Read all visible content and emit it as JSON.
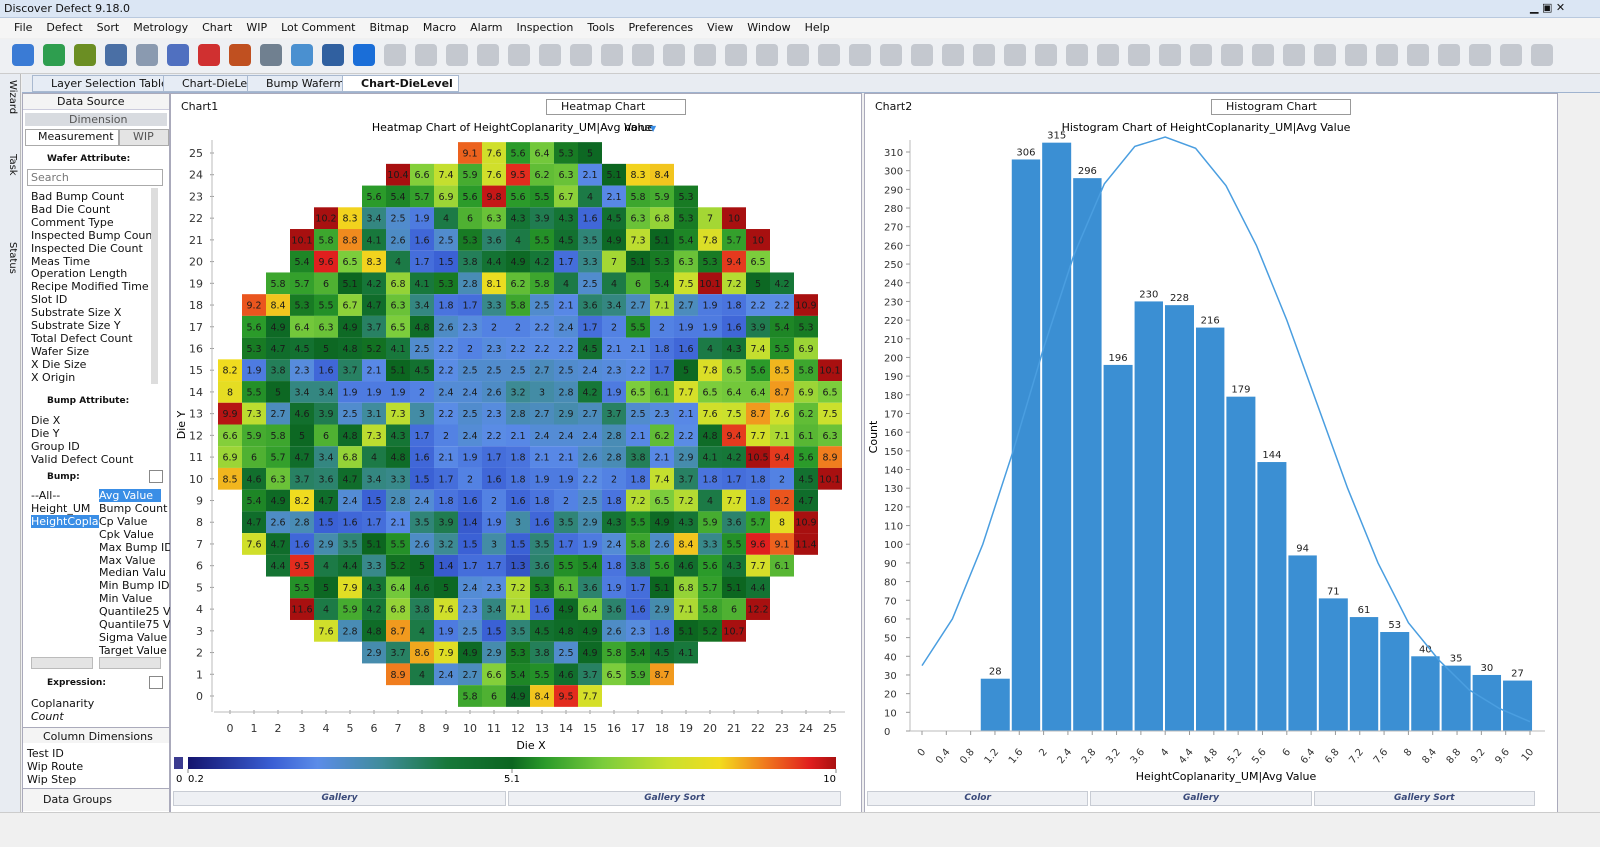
{
  "window": {
    "title": "Discover Defect 9.18.0"
  },
  "menu": [
    "File",
    "Defect",
    "Sort",
    "Metrology",
    "Chart",
    "WIP",
    "Lot Comment",
    "Bitmap",
    "Macro",
    "Alarm",
    "Inspection",
    "Tools",
    "Preferences",
    "View",
    "Window",
    "Help"
  ],
  "tabs": [
    "Layer Selection Table",
    "Chart-DieLevel",
    "Bump Wafermar",
    "Chart-DieLevel"
  ],
  "side_tabs": [
    "Wizard",
    "Task",
    "Status"
  ],
  "left_panel": {
    "title": "Data Source",
    "section": "Dimension",
    "subtabs": [
      "Measurement",
      "WIP"
    ],
    "wafer_header": "Wafer Attribute:",
    "search": "Search",
    "wafer_attributes": [
      "Bad Bump Count",
      "Bad Die Count",
      "Comment Type",
      "Inspected Bump Count",
      "Inspected Die Count",
      "Meas Time",
      "Operation Length",
      "Recipe Modified Time",
      "Slot ID",
      "Substrate Size X",
      "Substrate Size Y",
      "Total Defect Count",
      "Wafer Size",
      "X Die Size",
      "X Origin"
    ],
    "bump_attr_header": "Bump Attribute:",
    "bump_attributes": [
      "Die X",
      "Die Y",
      "Group ID",
      "Valid Defect Count"
    ],
    "bump_header": "Bump:",
    "bump_items": [
      "--All--",
      "Height_UM",
      "HeightCoplar"
    ],
    "bump_stats": [
      "Avg Value",
      "Bump Count",
      "Cp Value",
      "Cpk Value",
      "Max Bump ID",
      "Max Value",
      "Median Valu",
      "Min Bump ID",
      "Min Value",
      "Quantile25 V",
      "Quantile75 V",
      "Sigma Value",
      "Target Value"
    ],
    "expression_header": "Expression:",
    "expression_items": [
      "Coplanarity",
      "Count"
    ],
    "column_header": "Column Dimensions",
    "column_items": [
      "Test ID",
      "Wip Route",
      "Wip Step"
    ],
    "groups_header": "Data Groups"
  },
  "panels": [
    {
      "name": "Chart1",
      "selector": "Heatmap Chart",
      "footer": [
        "Gallery",
        "Gallery Sort"
      ]
    },
    {
      "name": "Chart2",
      "selector": "Histogram Chart",
      "footer": [
        "Color",
        "Gallery",
        "Gallery Sort"
      ]
    }
  ],
  "chart_data": [
    {
      "type": "heatmap",
      "title": "Heatmap Chart of  HeightCoplanarity_UM|Avg Value",
      "title_suffix": "none",
      "x_label": "Die X",
      "y_label": "Die Y",
      "xlim": [
        -0.5,
        25.5
      ],
      "ylim": [
        -0.5,
        25.5
      ],
      "xticks": [
        0,
        1,
        2,
        3,
        4,
        5,
        6,
        7,
        8,
        9,
        10,
        11,
        12,
        13,
        14,
        15,
        16,
        17,
        18,
        19,
        20,
        21,
        22,
        23,
        24,
        25
      ],
      "yticks": [
        0,
        1,
        2,
        3,
        4,
        5,
        6,
        7,
        8,
        9,
        10,
        11,
        12,
        13,
        14,
        15,
        16,
        17,
        18,
        19,
        20,
        21,
        22,
        23,
        24,
        25
      ],
      "colorbar": {
        "under_label": 0,
        "ticks": [
          0.2,
          5.1,
          10
        ]
      },
      "rows": [
        {
          "y": 25,
          "x0": 10,
          "values": [
            9.1,
            7.6,
            5.6,
            6.4,
            5.3,
            5
          ]
        },
        {
          "y": 24,
          "x0": 7,
          "values": [
            10.4,
            6.6,
            7.4,
            5.9,
            7.6,
            9.5,
            6.2,
            6.3,
            2.1,
            5.1,
            8.3,
            8.4
          ]
        },
        {
          "y": 23,
          "x0": 6,
          "values": [
            5.6,
            5.4,
            5.7,
            6.9,
            5.6,
            9.8,
            5.6,
            5.5,
            6.7,
            4,
            2.1,
            5.8,
            5.9,
            5.3
          ]
        },
        {
          "y": 22,
          "x0": 4,
          "values": [
            10.2,
            8.3,
            3.4,
            2.5,
            1.9,
            4,
            6,
            6.3,
            4.3,
            3.9,
            4.3,
            1.6,
            4.5,
            6.3,
            6.8,
            5.3,
            7,
            10
          ]
        },
        {
          "y": 21,
          "x0": 3,
          "values": [
            10.1,
            5.8,
            8.8,
            4.1,
            2.6,
            1.6,
            2.5,
            5.3,
            3.6,
            4,
            5.5,
            4.5,
            3.5,
            4.9,
            7.3,
            5.1,
            5.4,
            7.8,
            5.7,
            10
          ]
        },
        {
          "y": 20,
          "x0": 3,
          "values": [
            5.4,
            9.6,
            6.5,
            8.3,
            4,
            1.7,
            1.5,
            3.8,
            4.4,
            4.9,
            4.2,
            1.7,
            3.3,
            7,
            5.1,
            5.3,
            6.3,
            5.3,
            9.4,
            6.5
          ]
        },
        {
          "y": 19,
          "x0": 2,
          "values": [
            5.8,
            5.7,
            6,
            5.1,
            4.2,
            6.8,
            4.1,
            5.3,
            2.8,
            8.1,
            6.2,
            5.8,
            4,
            2.5,
            4,
            6,
            5.4,
            7.5,
            10.1,
            7.2,
            5,
            4.2
          ]
        },
        {
          "y": 18,
          "x0": 1,
          "values": [
            9.2,
            8.4,
            5.3,
            5.5,
            6.7,
            4.7,
            6.3,
            3.4,
            1.8,
            1.7,
            3.3,
            5.8,
            2.5,
            2.1,
            3.6,
            3.4,
            2.7,
            7.1,
            2.7,
            1.9,
            1.8,
            2.2,
            2.2,
            10.9
          ]
        },
        {
          "y": 17,
          "x0": 1,
          "values": [
            5.6,
            4.9,
            6.4,
            6.3,
            4.9,
            3.7,
            6.5,
            4.8,
            2.6,
            2.3,
            2,
            2,
            2.2,
            2.4,
            1.7,
            2,
            5.5,
            2,
            1.9,
            1.9,
            1.6,
            3.9,
            5.4,
            5.3
          ]
        },
        {
          "y": 16,
          "x0": 1,
          "values": [
            5.3,
            4.7,
            4.5,
            5,
            4.8,
            5.2,
            4.1,
            2.5,
            2.2,
            2,
            2.3,
            2.2,
            2.2,
            2.2,
            4.5,
            2.1,
            2.1,
            1.8,
            1.6,
            4,
            4.3,
            7.4,
            5.5,
            6.9
          ]
        },
        {
          "y": 15,
          "x0": 0,
          "values": [
            8.2,
            1.9,
            3.8,
            2.3,
            1.6,
            3.7,
            2.1,
            5.1,
            4.5,
            2.2,
            2.5,
            2.5,
            2.5,
            2.7,
            2.5,
            2.4,
            2.3,
            2.2,
            1.7,
            5,
            7.8,
            6.5,
            5.6,
            8.5,
            5.8,
            10.1
          ]
        },
        {
          "y": 14,
          "x0": 0,
          "values": [
            8,
            5.5,
            5,
            3.4,
            3.4,
            1.9,
            1.9,
            1.9,
            2,
            2.4,
            2.4,
            2.6,
            3.2,
            3,
            2.8,
            4.2,
            1.9,
            6.5,
            6.1,
            7.7,
            6.5,
            6.4,
            6.4,
            8.7,
            6.9,
            6.5
          ]
        },
        {
          "y": 13,
          "x0": 0,
          "values": [
            9.9,
            7.3,
            2.7,
            4.6,
            3.9,
            2.5,
            3.1,
            7.3,
            3,
            2.2,
            2.5,
            2.3,
            2.8,
            2.7,
            2.9,
            2.7,
            3.7,
            2.5,
            2.3,
            2.1,
            7.6,
            7.5,
            8.7,
            7.6,
            6.2,
            7.5
          ]
        },
        {
          "y": 12,
          "x0": 0,
          "values": [
            6.6,
            5.9,
            5.8,
            5,
            6,
            4.8,
            7.3,
            4.3,
            1.7,
            2,
            2.4,
            2.2,
            2.1,
            2.4,
            2.4,
            2.4,
            2.8,
            2.1,
            6.2,
            2.2,
            4.8,
            9.4,
            7.7,
            7.1,
            6.1,
            6.3
          ]
        },
        {
          "y": 11,
          "x0": 0,
          "values": [
            6.9,
            6,
            5.7,
            4.7,
            3.4,
            6.8,
            4,
            4.8,
            1.6,
            2.1,
            1.9,
            1.7,
            1.8,
            2.1,
            2.1,
            2.6,
            2.8,
            3.8,
            2.1,
            2.9,
            4.1,
            4.2,
            10.5,
            9.4,
            5.6,
            8.9
          ]
        },
        {
          "y": 10,
          "x0": 0,
          "values": [
            8.5,
            4.6,
            6.3,
            3.7,
            3.6,
            4.7,
            3.4,
            3.3,
            1.5,
            1.7,
            2,
            1.6,
            1.8,
            1.9,
            1.9,
            2.2,
            2,
            1.8,
            7.4,
            3.7,
            1.8,
            1.7,
            1.8,
            2,
            4.5,
            10.1
          ]
        },
        {
          "y": 9,
          "x0": 1,
          "values": [
            5.4,
            4.9,
            8.2,
            4.7,
            2.4,
            1.5,
            2.8,
            2.4,
            1.8,
            1.6,
            2,
            1.6,
            1.8,
            2,
            2.5,
            1.8,
            7.2,
            6.5,
            7.2,
            4,
            7.7,
            1.8,
            9.2,
            4.7
          ]
        },
        {
          "y": 8,
          "x0": 1,
          "values": [
            4.7,
            2.6,
            2.8,
            1.5,
            1.6,
            1.7,
            2.1,
            3.5,
            3.9,
            1.4,
            1.9,
            3,
            1.6,
            3.5,
            2.9,
            4.3,
            5.5,
            4.9,
            4.3,
            5.9,
            3.6,
            5.7,
            8,
            10.9
          ]
        },
        {
          "y": 7,
          "x0": 1,
          "values": [
            7.6,
            4.7,
            1.6,
            2.9,
            3.5,
            5.1,
            5.5,
            2.6,
            3.2,
            1.5,
            3,
            1.5,
            3.5,
            1.7,
            1.9,
            2.4,
            5.8,
            2.6,
            8.4,
            3.3,
            5.5,
            9.6,
            9.1,
            11.4
          ]
        },
        {
          "y": 6,
          "x0": 2,
          "values": [
            4.4,
            9.5,
            4,
            4.4,
            3.3,
            5.2,
            5,
            1.4,
            1.7,
            1.7,
            1.3,
            3.6,
            5.5,
            5.4,
            1.8,
            3.8,
            5.6,
            4.6,
            5.6,
            4.3,
            7.7,
            6.1
          ]
        },
        {
          "y": 5,
          "x0": 3,
          "values": [
            5.5,
            5,
            7.9,
            4.3,
            6.4,
            4.6,
            5,
            2.4,
            2.3,
            7.2,
            5.3,
            6.1,
            3.6,
            1.9,
            1.7,
            5.1,
            6.8,
            5.7,
            5.1,
            4.4
          ]
        },
        {
          "y": 4,
          "x0": 3,
          "values": [
            11.6,
            4,
            5.9,
            4.2,
            6.8,
            3.8,
            7.6,
            2.3,
            3.4,
            7.1,
            1.6,
            4.9,
            6.4,
            3.6,
            1.6,
            2.9,
            7.1,
            5.8,
            6,
            12.2
          ]
        },
        {
          "y": 3,
          "x0": 4,
          "values": [
            7.6,
            2.8,
            4.8,
            8.7,
            4,
            1.9,
            2.5,
            1.5,
            3.5,
            4.5,
            4.8,
            4.9,
            2.6,
            2.3,
            1.8,
            5.1,
            5.2,
            10.7
          ]
        },
        {
          "y": 2,
          "x0": 6,
          "values": [
            2.9,
            3.7,
            8.6,
            7.9,
            4.9,
            2.9,
            5.3,
            3.8,
            2.5,
            4.9,
            5.8,
            5.4,
            4.5,
            4.1
          ]
        },
        {
          "y": 1,
          "x0": 7,
          "values": [
            8.9,
            4,
            2.4,
            2.7,
            6.6,
            5.4,
            5.5,
            4.6,
            3.7,
            6.5,
            5.9,
            8.7
          ]
        },
        {
          "y": 0,
          "x0": 10,
          "values": [
            5.8,
            6,
            4.9,
            8.4,
            9.5,
            7.7
          ]
        }
      ]
    },
    {
      "type": "histogram",
      "title": "Histogram Chart of HeightCoplanarity_UM|Avg Value",
      "x_label": "HeightCoplanarity_UM|Avg Value",
      "y_label": "Count",
      "color": "#3b8fd3",
      "bins": [
        0.95,
        1.46,
        1.96,
        2.47,
        2.97,
        3.48,
        3.98,
        4.49,
        4.99,
        5.5,
        6.01,
        6.51,
        7.02,
        7.52,
        8.03,
        8.53,
        9.04,
        9.54,
        10.05
      ],
      "values": [
        28,
        306,
        315,
        296,
        196,
        230,
        228,
        216,
        179,
        144,
        94,
        71,
        61,
        53,
        40,
        35,
        30,
        27
      ],
      "curve": {
        "color": "#4a9ee0",
        "x": [
          0,
          0.5,
          1,
          1.5,
          2,
          2.5,
          3,
          3.5,
          4,
          4.5,
          5,
          5.5,
          6,
          6.5,
          7,
          7.5,
          8,
          8.5,
          9,
          9.5,
          10
        ],
        "y": [
          35,
          60,
          100,
          150,
          205,
          255,
          293,
          313,
          318,
          312,
          292,
          260,
          220,
          175,
          130,
          90,
          58,
          38,
          22,
          12,
          5
        ]
      },
      "xlim": [
        0,
        10
      ],
      "ylim": [
        0,
        310
      ],
      "xticks": [
        0,
        0.4,
        0.8,
        1.2,
        1.6,
        2,
        2.4,
        2.8,
        3.2,
        3.6,
        4,
        4.4,
        4.8,
        5.2,
        5.6,
        6,
        6.4,
        6.8,
        7.2,
        7.6,
        8,
        8.4,
        8.8,
        9.2,
        9.6,
        10
      ],
      "yticks": [
        0,
        10,
        20,
        30,
        40,
        50,
        60,
        70,
        80,
        90,
        100,
        110,
        120,
        130,
        140,
        150,
        160,
        170,
        180,
        190,
        200,
        210,
        220,
        230,
        240,
        250,
        260,
        270,
        280,
        290,
        300,
        310
      ]
    }
  ]
}
